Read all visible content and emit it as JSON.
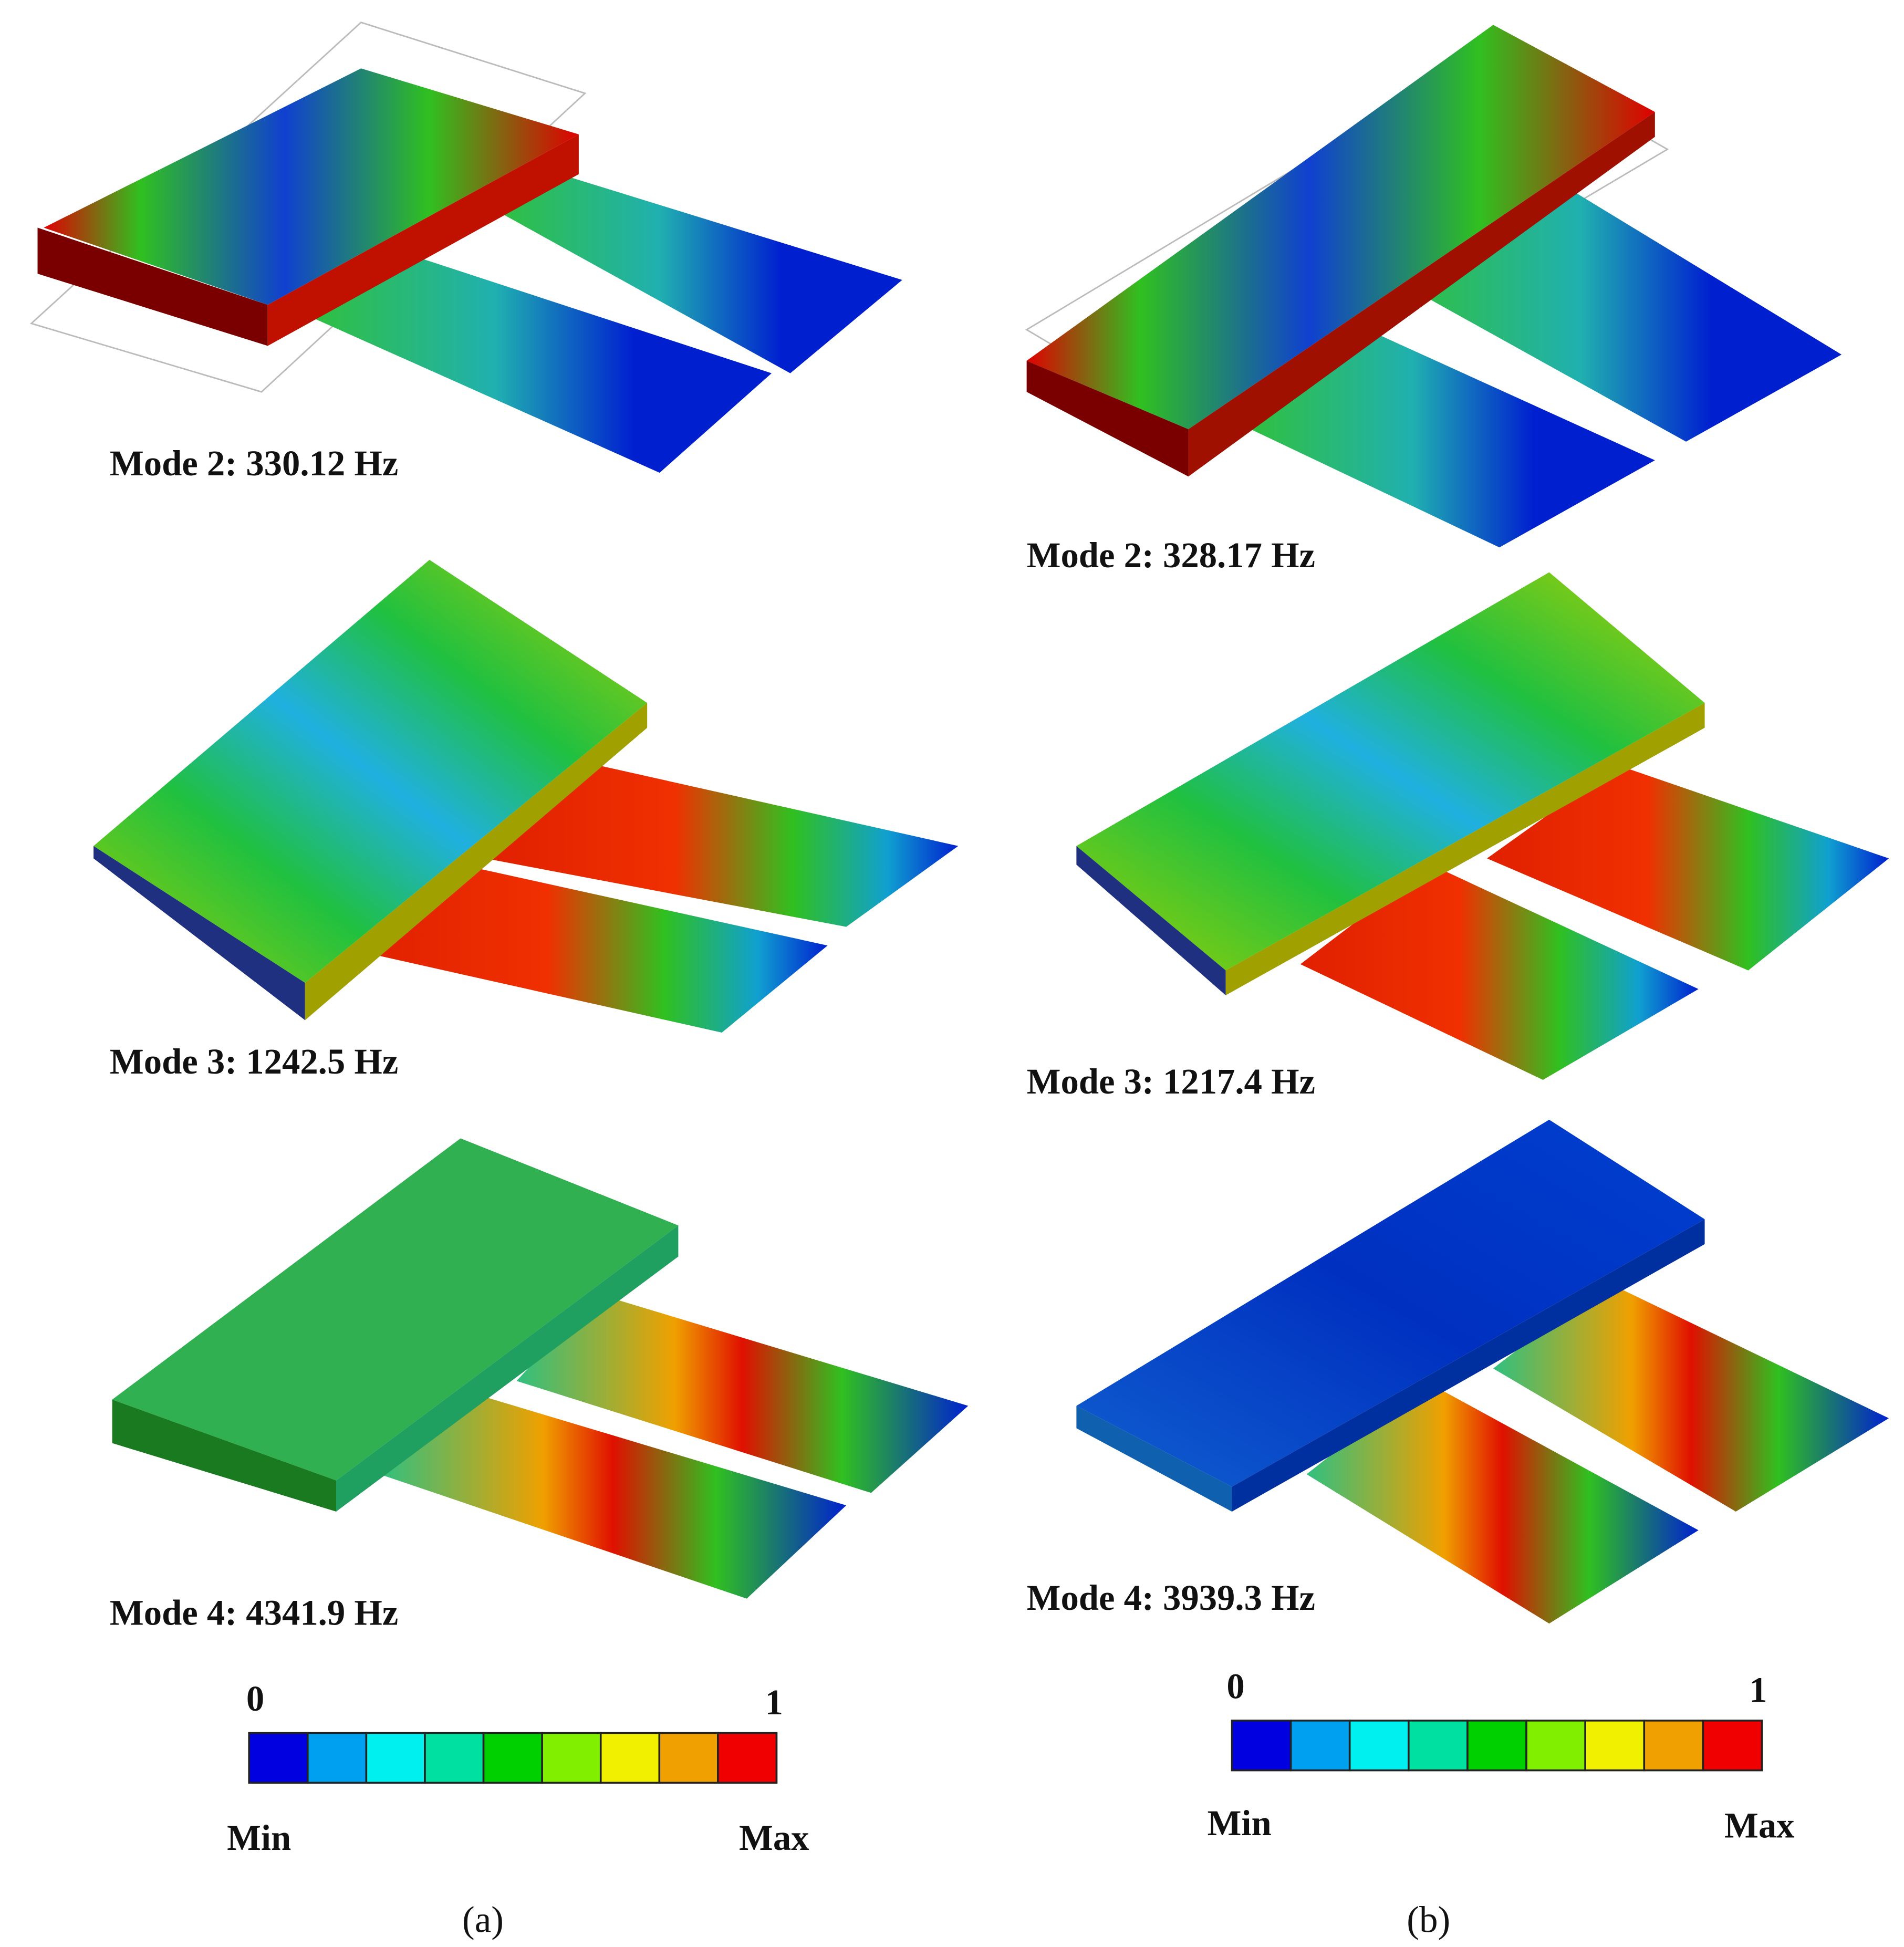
{
  "panels": [
    {
      "label": "(a)",
      "modes": [
        "Mode 2: 330.12 Hz",
        "Mode 3: 1242.5 Hz",
        "Mode 4: 4341.9 Hz"
      ],
      "colorbar": {
        "min_value": "0",
        "max_value": "1",
        "min_label": "Min",
        "max_label": "Max"
      }
    },
    {
      "label": "(b)",
      "modes": [
        "Mode 2: 328.17 Hz",
        "Mode 3: 1217.4 Hz",
        "Mode 4: 3939.3 Hz"
      ],
      "colorbar": {
        "min_value": "0",
        "max_value": "1",
        "min_label": "Min",
        "max_label": "Max"
      }
    }
  ]
}
